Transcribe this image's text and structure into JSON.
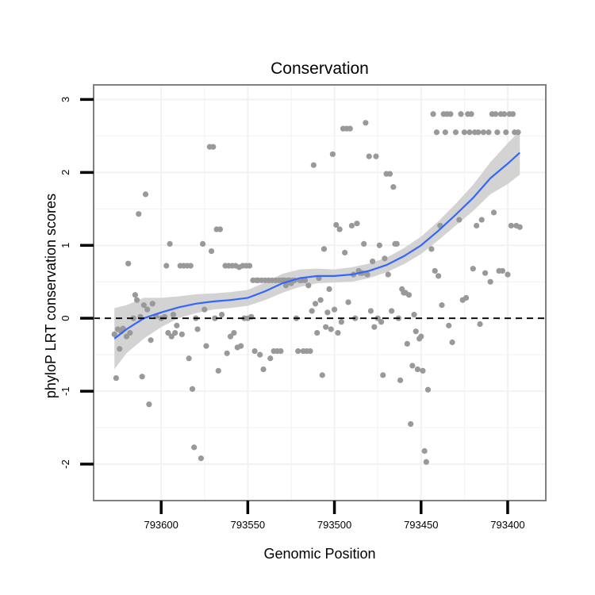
{
  "chart_data": {
    "type": "scatter",
    "title": "Conservation",
    "xlabel": "Genomic Position",
    "ylabel": "phyloP LRT conservation scores",
    "x_reversed": true,
    "xlim": [
      793378,
      793639
    ],
    "ylim": [
      -2.5,
      3.2
    ],
    "x_ticks": [
      793600,
      793550,
      793500,
      793450,
      793400
    ],
    "y_ticks": [
      -2,
      -1,
      0,
      1,
      2,
      3
    ],
    "x_tick_labels": [
      "793600",
      "793550",
      "793500",
      "793450",
      "793400"
    ],
    "y_tick_labels": [
      "-2",
      "-1",
      "0",
      "1",
      "2",
      "3"
    ],
    "grid": true,
    "reference_line": {
      "y": 0,
      "style": "dashed",
      "color": "#000000"
    },
    "colors": {
      "points": "#999999",
      "smooth": "#3366FF",
      "ribbon": "#D3D3D3",
      "panel_border": "#808080",
      "grid": "#F2F2F2"
    },
    "points": [
      [
        793627,
        -0.22
      ],
      [
        793626,
        -0.82
      ],
      [
        793625,
        -0.15
      ],
      [
        793624,
        -0.42
      ],
      [
        793623,
        -0.18
      ],
      [
        793622,
        -0.14
      ],
      [
        793620,
        -0.25
      ],
      [
        793619,
        0.75
      ],
      [
        793618,
        -0.2
      ],
      [
        793616,
        0.0
      ],
      [
        793615,
        0.32
      ],
      [
        793614,
        0.25
      ],
      [
        793613,
        1.43
      ],
      [
        793612,
        0.02
      ],
      [
        793611,
        -0.8
      ],
      [
        793610,
        0.18
      ],
      [
        793609,
        1.7
      ],
      [
        793608,
        0.12
      ],
      [
        793607,
        -1.18
      ],
      [
        793606,
        -0.3
      ],
      [
        793605,
        0.2
      ],
      [
        793603,
        0.03
      ],
      [
        793600,
        0.0
      ],
      [
        793598,
        0.02
      ],
      [
        793597,
        0.72
      ],
      [
        793596,
        -0.2
      ],
      [
        793595,
        1.02
      ],
      [
        793594,
        -0.25
      ],
      [
        793593,
        0.05
      ],
      [
        793592,
        -0.2
      ],
      [
        793591,
        -0.1
      ],
      [
        793589,
        0.72
      ],
      [
        793588,
        -0.22
      ],
      [
        793587,
        0.72
      ],
      [
        793585,
        0.72
      ],
      [
        793584,
        -0.55
      ],
      [
        793583,
        0.72
      ],
      [
        793582,
        -0.97
      ],
      [
        793581,
        -1.77
      ],
      [
        793580,
        0.0
      ],
      [
        793579,
        -0.15
      ],
      [
        793577,
        -1.92
      ],
      [
        793576,
        1.02
      ],
      [
        793575,
        0.12
      ],
      [
        793574,
        -0.38
      ],
      [
        793572,
        2.35
      ],
      [
        793571,
        0.92
      ],
      [
        793570,
        2.35
      ],
      [
        793569,
        0.0
      ],
      [
        793568,
        1.22
      ],
      [
        793567,
        -0.72
      ],
      [
        793566,
        1.22
      ],
      [
        793565,
        0.05
      ],
      [
        793563,
        0.72
      ],
      [
        793562,
        -0.48
      ],
      [
        793561,
        0.72
      ],
      [
        793560,
        -0.25
      ],
      [
        793559,
        0.72
      ],
      [
        793558,
        -0.2
      ],
      [
        793557,
        0.72
      ],
      [
        793556,
        -0.4
      ],
      [
        793555,
        0.7
      ],
      [
        793554,
        -0.38
      ],
      [
        793553,
        0.72
      ],
      [
        793552,
        0.0
      ],
      [
        793551,
        0.72
      ],
      [
        793550,
        0.0
      ],
      [
        793549,
        0.72
      ],
      [
        793548,
        0.02
      ],
      [
        793547,
        0.52
      ],
      [
        793546,
        -0.45
      ],
      [
        793545,
        0.52
      ],
      [
        793544,
        0.52
      ],
      [
        793543,
        -0.5
      ],
      [
        793542,
        0.52
      ],
      [
        793541,
        -0.7
      ],
      [
        793540,
        0.52
      ],
      [
        793538,
        0.52
      ],
      [
        793537,
        -0.55
      ],
      [
        793536,
        0.52
      ],
      [
        793535,
        -0.45
      ],
      [
        793534,
        0.52
      ],
      [
        793533,
        -0.45
      ],
      [
        793532,
        0.52
      ],
      [
        793531,
        -0.45
      ],
      [
        793530,
        0.52
      ],
      [
        793529,
        0.52
      ],
      [
        793528,
        0.45
      ],
      [
        793527,
        0.52
      ],
      [
        793526,
        0.52
      ],
      [
        793525,
        0.48
      ],
      [
        793524,
        0.52
      ],
      [
        793523,
        0.52
      ],
      [
        793522,
        0.0
      ],
      [
        793521,
        -0.45
      ],
      [
        793520,
        0.52
      ],
      [
        793519,
        0.52
      ],
      [
        793518,
        -0.45
      ],
      [
        793517,
        0.52
      ],
      [
        793516,
        -0.45
      ],
      [
        793515,
        0.45
      ],
      [
        793514,
        -0.45
      ],
      [
        793513,
        0.1
      ],
      [
        793512,
        2.1
      ],
      [
        793511,
        0.2
      ],
      [
        793510,
        -0.2
      ],
      [
        793509,
        0.55
      ],
      [
        793508,
        0.25
      ],
      [
        793507,
        -0.78
      ],
      [
        793506,
        0.95
      ],
      [
        793505,
        -0.12
      ],
      [
        793504,
        0.08
      ],
      [
        793503,
        0.4
      ],
      [
        793502,
        -0.15
      ],
      [
        793501,
        2.25
      ],
      [
        793500,
        0.12
      ],
      [
        793499,
        1.28
      ],
      [
        793498,
        -0.2
      ],
      [
        793497,
        1.22
      ],
      [
        793496,
        -0.05
      ],
      [
        793495,
        2.6
      ],
      [
        793494,
        0.9
      ],
      [
        793493,
        2.6
      ],
      [
        793492,
        0.22
      ],
      [
        793491,
        2.6
      ],
      [
        793490,
        1.27
      ],
      [
        793489,
        0.6
      ],
      [
        793488,
        0.0
      ],
      [
        793487,
        1.3
      ],
      [
        793486,
        0.65
      ],
      [
        793485,
        0.62
      ],
      [
        793484,
        0.62
      ],
      [
        793483,
        1.02
      ],
      [
        793482,
        2.68
      ],
      [
        793481,
        0.6
      ],
      [
        793480,
        2.22
      ],
      [
        793479,
        0.1
      ],
      [
        793478,
        0.78
      ],
      [
        793477,
        -0.12
      ],
      [
        793476,
        2.22
      ],
      [
        793475,
        0.0
      ],
      [
        793474,
        1.0
      ],
      [
        793473,
        -0.05
      ],
      [
        793472,
        -0.78
      ],
      [
        793471,
        0.82
      ],
      [
        793470,
        1.98
      ],
      [
        793469,
        0.6
      ],
      [
        793468,
        1.98
      ],
      [
        793467,
        0.1
      ],
      [
        793466,
        1.8
      ],
      [
        793465,
        1.02
      ],
      [
        793464,
        1.02
      ],
      [
        793463,
        0.0
      ],
      [
        793462,
        -0.85
      ],
      [
        793461,
        0.4
      ],
      [
        793460,
        0.35
      ],
      [
        793459,
        0.35
      ],
      [
        793458,
        -0.35
      ],
      [
        793457,
        0.32
      ],
      [
        793456,
        -1.45
      ],
      [
        793455,
        -0.65
      ],
      [
        793454,
        0.05
      ],
      [
        793453,
        -0.18
      ],
      [
        793452,
        -0.7
      ],
      [
        793451,
        -0.28
      ],
      [
        793450,
        -0.25
      ],
      [
        793449,
        -0.72
      ],
      [
        793448,
        -1.82
      ],
      [
        793447,
        -1.97
      ],
      [
        793446,
        -0.98
      ],
      [
        793444,
        0.95
      ],
      [
        793443,
        2.8
      ],
      [
        793442,
        0.65
      ],
      [
        793441,
        2.55
      ],
      [
        793440,
        0.58
      ],
      [
        793439,
        1.27
      ],
      [
        793438,
        0.18
      ],
      [
        793437,
        2.8
      ],
      [
        793436,
        2.55
      ],
      [
        793435,
        2.8
      ],
      [
        793434,
        -0.1
      ],
      [
        793433,
        2.8
      ],
      [
        793432,
        -0.33
      ],
      [
        793430,
        2.55
      ],
      [
        793428,
        1.35
      ],
      [
        793427,
        2.8
      ],
      [
        793426,
        0.25
      ],
      [
        793425,
        2.55
      ],
      [
        793424,
        0.28
      ],
      [
        793423,
        2.8
      ],
      [
        793422,
        2.55
      ],
      [
        793421,
        2.8
      ],
      [
        793420,
        0.68
      ],
      [
        793419,
        2.55
      ],
      [
        793418,
        1.27
      ],
      [
        793417,
        2.55
      ],
      [
        793416,
        -0.08
      ],
      [
        793415,
        1.35
      ],
      [
        793414,
        2.55
      ],
      [
        793413,
        0.62
      ],
      [
        793411,
        2.55
      ],
      [
        793410,
        0.5
      ],
      [
        793409,
        2.8
      ],
      [
        793408,
        1.45
      ],
      [
        793407,
        2.8
      ],
      [
        793406,
        2.55
      ],
      [
        793405,
        0.65
      ],
      [
        793404,
        2.8
      ],
      [
        793403,
        0.65
      ],
      [
        793402,
        2.8
      ],
      [
        793401,
        2.55
      ],
      [
        793400,
        0.6
      ],
      [
        793399,
        2.8
      ],
      [
        793398,
        1.27
      ],
      [
        793397,
        2.8
      ],
      [
        793396,
        2.55
      ],
      [
        793395,
        1.27
      ],
      [
        793394,
        2.55
      ],
      [
        793393,
        1.25
      ]
    ],
    "smooth": [
      [
        793627,
        -0.28
      ],
      [
        793620,
        -0.15
      ],
      [
        793610,
        0.0
      ],
      [
        793600,
        0.08
      ],
      [
        793590,
        0.15
      ],
      [
        793580,
        0.2
      ],
      [
        793570,
        0.23
      ],
      [
        793560,
        0.25
      ],
      [
        793550,
        0.28
      ],
      [
        793540,
        0.37
      ],
      [
        793530,
        0.48
      ],
      [
        793520,
        0.55
      ],
      [
        793510,
        0.58
      ],
      [
        793500,
        0.58
      ],
      [
        793490,
        0.6
      ],
      [
        793480,
        0.65
      ],
      [
        793470,
        0.73
      ],
      [
        793460,
        0.85
      ],
      [
        793450,
        1.0
      ],
      [
        793440,
        1.2
      ],
      [
        793430,
        1.42
      ],
      [
        793420,
        1.65
      ],
      [
        793410,
        1.92
      ],
      [
        793400,
        2.12
      ],
      [
        793393,
        2.27
      ]
    ],
    "ribbon_halfwidth": [
      0.42,
      0.33,
      0.28,
      0.2,
      0.15,
      0.13,
      0.11,
      0.11,
      0.11,
      0.12,
      0.13,
      0.12,
      0.1,
      0.09,
      0.1,
      0.1,
      0.1,
      0.11,
      0.12,
      0.13,
      0.15,
      0.18,
      0.22,
      0.28,
      0.3
    ]
  }
}
